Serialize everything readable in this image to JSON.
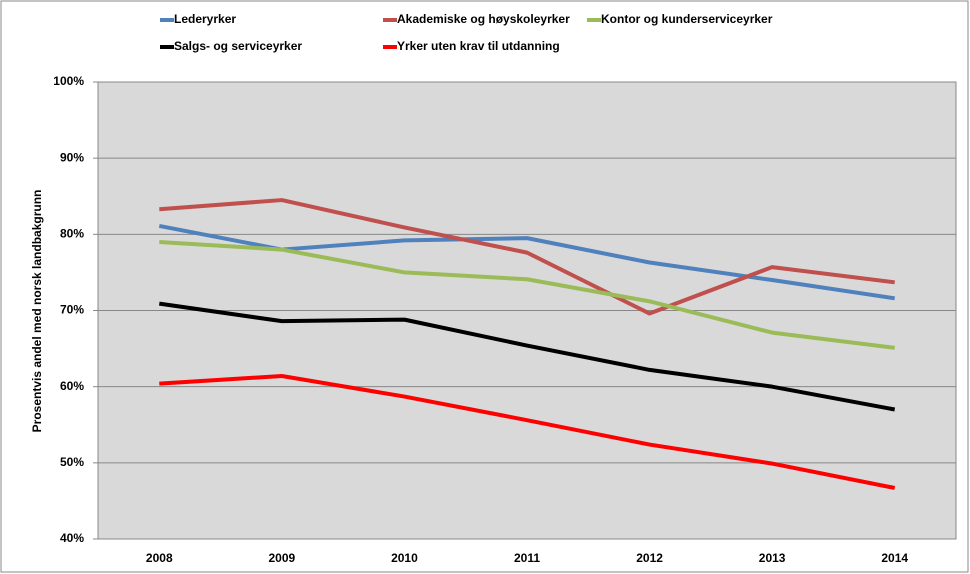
{
  "chart_data": {
    "type": "line",
    "y_label": "Prosentvis andel med norsk landbakgrunn",
    "categories": [
      "2008",
      "2009",
      "2010",
      "2011",
      "2012",
      "2013",
      "2014"
    ],
    "series": [
      {
        "name": "Lederyrker",
        "color": "#4f81bd",
        "values": [
          81.1,
          78.0,
          79.2,
          79.5,
          76.3,
          74.0,
          71.6
        ]
      },
      {
        "name": "Akademiske og høyskoleyrker",
        "color": "#c0504d",
        "values": [
          83.3,
          84.5,
          80.9,
          77.6,
          69.6,
          75.7,
          73.7
        ]
      },
      {
        "name": "Kontor og kunderserviceyrker",
        "color": "#9bbb59",
        "values": [
          79.0,
          78.0,
          75.0,
          74.1,
          71.2,
          67.1,
          65.1
        ]
      },
      {
        "name": "Salgs- og serviceyrker",
        "color": "#000000",
        "values": [
          70.9,
          68.6,
          68.8,
          65.4,
          62.2,
          60.0,
          57.0
        ]
      },
      {
        "name": "Yrker uten krav til utdanning",
        "color": "#ff0000",
        "values": [
          60.4,
          61.4,
          58.7,
          55.6,
          52.4,
          49.9,
          46.7
        ]
      }
    ],
    "ylim": [
      40,
      100
    ],
    "yticks": [
      {
        "value": 40,
        "label": "40%"
      },
      {
        "value": 50,
        "label": "50%"
      },
      {
        "value": 60,
        "label": "60%"
      },
      {
        "value": 70,
        "label": "70%"
      },
      {
        "value": 80,
        "label": "80%"
      },
      {
        "value": 90,
        "label": "90%"
      },
      {
        "value": 100,
        "label": "100%"
      }
    ],
    "grid": true,
    "plot_background": "#d9d9d9",
    "legend": "top"
  }
}
